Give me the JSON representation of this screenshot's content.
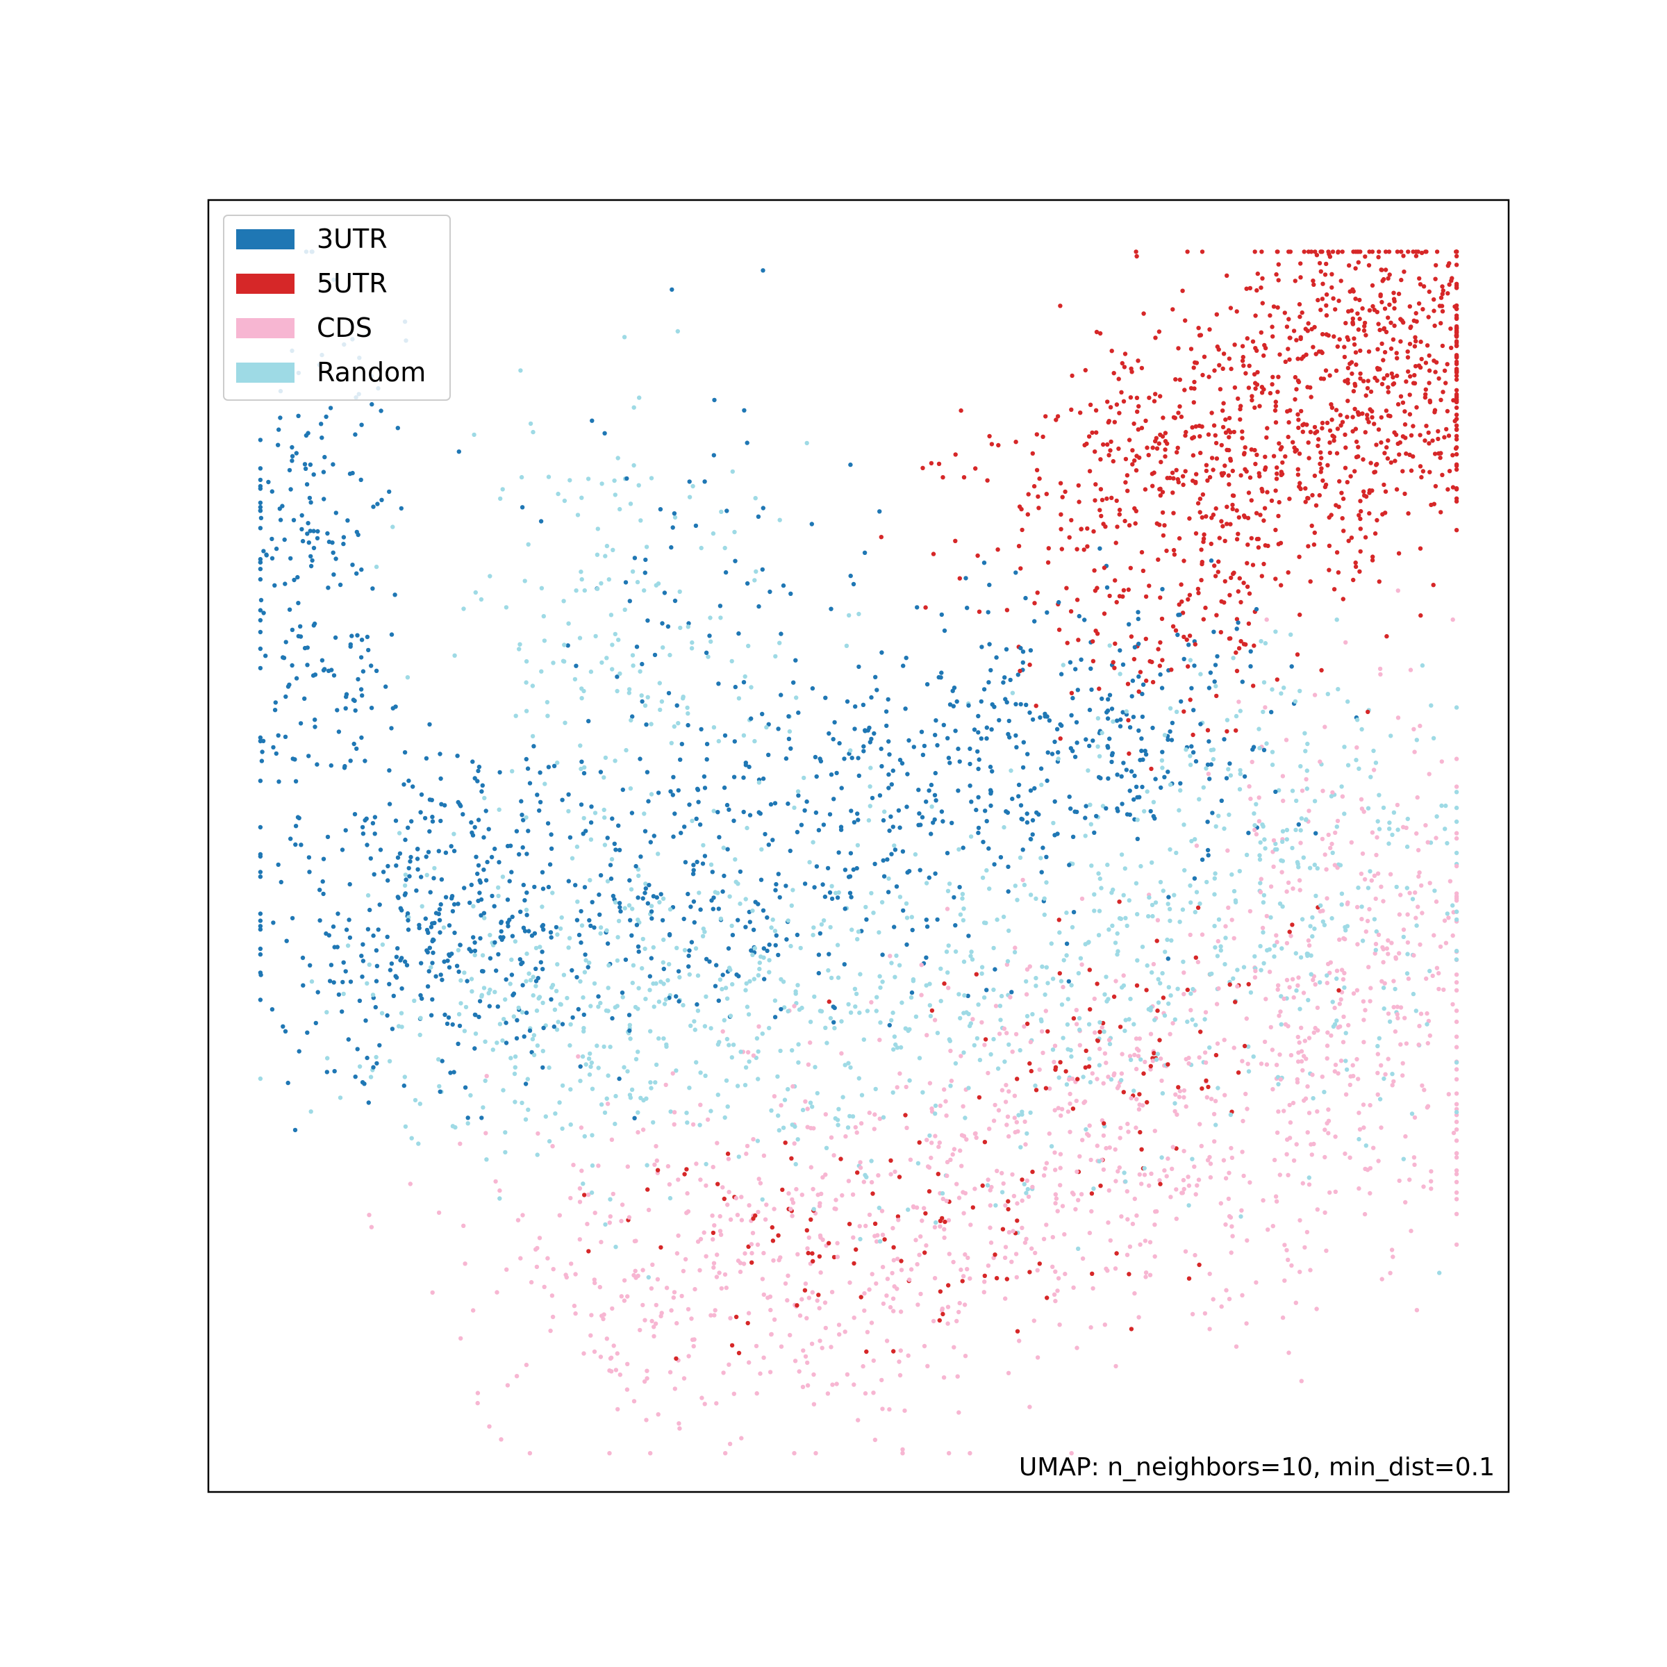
{
  "chart_data": {
    "type": "scatter",
    "title": "",
    "xlabel": "",
    "ylabel": "",
    "xlim": [
      0,
      100
    ],
    "ylim": [
      0,
      100
    ],
    "grid": false,
    "legend_placement": "top-left",
    "annotation": "UMAP: n_neighbors=10, min_dist=0.1",
    "series": [
      {
        "name": "3UTR",
        "color": "#1f77b4",
        "count": 1400,
        "clusters": [
          {
            "cx": 8,
            "cy": 72,
            "sx": 3.5,
            "sy": 11,
            "n": 220
          },
          {
            "cx": 17,
            "cy": 44,
            "sx": 7,
            "sy": 7,
            "n": 330
          },
          {
            "cx": 35,
            "cy": 47,
            "sx": 11,
            "sy": 5.5,
            "n": 300
          },
          {
            "cx": 56,
            "cy": 55,
            "sx": 10,
            "sy": 6,
            "n": 300
          },
          {
            "cx": 70,
            "cy": 60,
            "sx": 7,
            "sy": 5,
            "n": 180
          },
          {
            "cx": 38,
            "cy": 68,
            "sx": 7,
            "sy": 8,
            "n": 70
          }
        ]
      },
      {
        "name": "5UTR",
        "color": "#d62728",
        "count": 1350,
        "clusters": [
          {
            "cx": 89,
            "cy": 87,
            "sx": 6.5,
            "sy": 6.5,
            "n": 600
          },
          {
            "cx": 76,
            "cy": 79,
            "sx": 8,
            "sy": 5,
            "n": 450
          },
          {
            "cx": 75,
            "cy": 68,
            "sx": 6,
            "sy": 5,
            "n": 120
          },
          {
            "cx": 70,
            "cy": 35,
            "sx": 7,
            "sy": 5,
            "n": 80
          },
          {
            "cx": 50,
            "cy": 20,
            "sx": 10,
            "sy": 5,
            "n": 100
          }
        ]
      },
      {
        "name": "CDS",
        "color": "#f7b6d2",
        "count": 1300,
        "clusters": [
          {
            "cx": 43,
            "cy": 18,
            "sx": 11,
            "sy": 7,
            "n": 500
          },
          {
            "cx": 70,
            "cy": 28,
            "sx": 10,
            "sy": 7,
            "n": 420
          },
          {
            "cx": 89,
            "cy": 40,
            "sx": 6,
            "sy": 10,
            "n": 380
          }
        ]
      },
      {
        "name": "Random",
        "color": "#9edae5",
        "count": 1300,
        "clusters": [
          {
            "cx": 30,
            "cy": 37,
            "sx": 10,
            "sy": 6,
            "n": 380
          },
          {
            "cx": 33,
            "cy": 65,
            "sx": 7,
            "sy": 10,
            "n": 200
          },
          {
            "cx": 60,
            "cy": 38,
            "sx": 11,
            "sy": 8,
            "n": 380
          },
          {
            "cx": 82,
            "cy": 48,
            "sx": 8,
            "sy": 9,
            "n": 340
          }
        ]
      }
    ]
  }
}
